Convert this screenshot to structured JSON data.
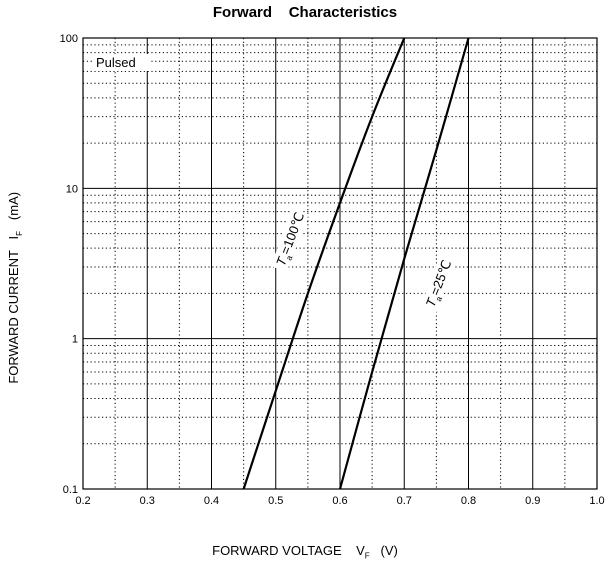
{
  "chart_data": {
    "type": "line",
    "title": "Forward    Characteristics",
    "xlabel": "FORWARD VOLTAGE",
    "xlabel_symbol": "V",
    "xlabel_subscript": "F",
    "xlabel_unit": "(V)",
    "ylabel": "FORWARD CURRENT",
    "ylabel_symbol": "I",
    "ylabel_subscript": "F",
    "ylabel_unit": "(mA)",
    "xlim": [
      0.2,
      1.0
    ],
    "ylim": [
      0.1,
      100
    ],
    "yscale": "log",
    "x_ticks": [
      "0.2",
      "0.3",
      "0.4",
      "0.5",
      "0.6",
      "0.7",
      "0.8",
      "0.9",
      "1.0"
    ],
    "y_ticks": [
      "0.1",
      "1",
      "10",
      "100"
    ],
    "grid": true,
    "annotation": "Pulsed",
    "series": [
      {
        "name": "Ta=100℃",
        "label_parts": {
          "symbol": "T",
          "subscript": "a",
          "value": "=100℃"
        },
        "points": [
          [
            0.45,
            0.1
          ],
          [
            0.5,
            0.45
          ],
          [
            0.55,
            2.0
          ],
          [
            0.6,
            8.0
          ],
          [
            0.65,
            30
          ],
          [
            0.7,
            100
          ]
        ]
      },
      {
        "name": "Ta=25℃",
        "label_parts": {
          "symbol": "T",
          "subscript": "a",
          "value": "=25℃"
        },
        "points": [
          [
            0.6,
            0.1
          ],
          [
            0.65,
            0.6
          ],
          [
            0.7,
            3.4
          ],
          [
            0.75,
            18
          ],
          [
            0.8,
            100
          ]
        ]
      }
    ]
  }
}
